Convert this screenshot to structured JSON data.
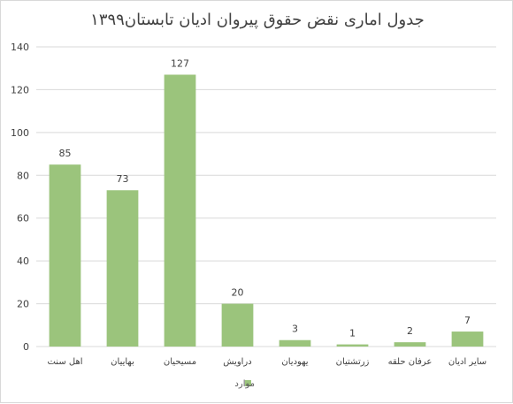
{
  "chart_data": {
    "type": "bar",
    "title": "جدول اماری نقض حقوق پیروان ادیان تابستان۱۳۹۹",
    "categories": [
      "اهل سنت",
      "بهاییان",
      "مسیحیان",
      "دراویش",
      "یهودیان",
      "زرتشتیان",
      "عرفان حلقه",
      "سایر ادیان"
    ],
    "series": [
      {
        "name": "موارد",
        "values": [
          85,
          73,
          127,
          20,
          3,
          1,
          2,
          7
        ]
      }
    ],
    "ylim": [
      0,
      140
    ],
    "yticks": [
      0,
      20,
      40,
      60,
      80,
      100,
      120,
      140
    ],
    "grid": true,
    "legend": "bottom",
    "colors": {
      "bar": "#9bc47c",
      "grid": "#d9d9d9",
      "text": "#404040"
    }
  }
}
